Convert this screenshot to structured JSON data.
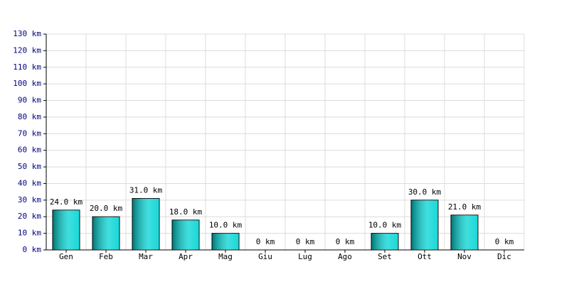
{
  "chart_data": {
    "type": "bar",
    "categories": [
      "Gen",
      "Feb",
      "Mar",
      "Apr",
      "Mag",
      "Giu",
      "Lug",
      "Ago",
      "Set",
      "Ott",
      "Nov",
      "Dic"
    ],
    "values": [
      24,
      20,
      31,
      18,
      10,
      0,
      0,
      0,
      10,
      30,
      21,
      0
    ],
    "value_labels": [
      "24.0 km",
      "20.0 km",
      "31.0 km",
      "18.0 km",
      "10.0 km",
      "0 km",
      "0 km",
      "0 km",
      "10.0 km",
      "30.0 km",
      "21.0 km",
      "0 km"
    ],
    "color": "#00d4d4",
    "ylim": [
      0,
      130
    ],
    "yticks": [
      {
        "value": 0,
        "label": "0 km"
      },
      {
        "value": 10,
        "label": "10 km"
      },
      {
        "value": 20,
        "label": "20 km"
      },
      {
        "value": 30,
        "label": "30 km"
      },
      {
        "value": 40,
        "label": "40 km"
      },
      {
        "value": 50,
        "label": "50 km"
      },
      {
        "value": 60,
        "label": "60 km"
      },
      {
        "value": 70,
        "label": "70 km"
      },
      {
        "value": 80,
        "label": "80 km"
      },
      {
        "value": 90,
        "label": "90 km"
      },
      {
        "value": 100,
        "label": "100 km"
      },
      {
        "value": 110,
        "label": "110 km"
      },
      {
        "value": 120,
        "label": "120 km"
      },
      {
        "value": 130,
        "label": "130 km"
      }
    ],
    "grid": true
  }
}
